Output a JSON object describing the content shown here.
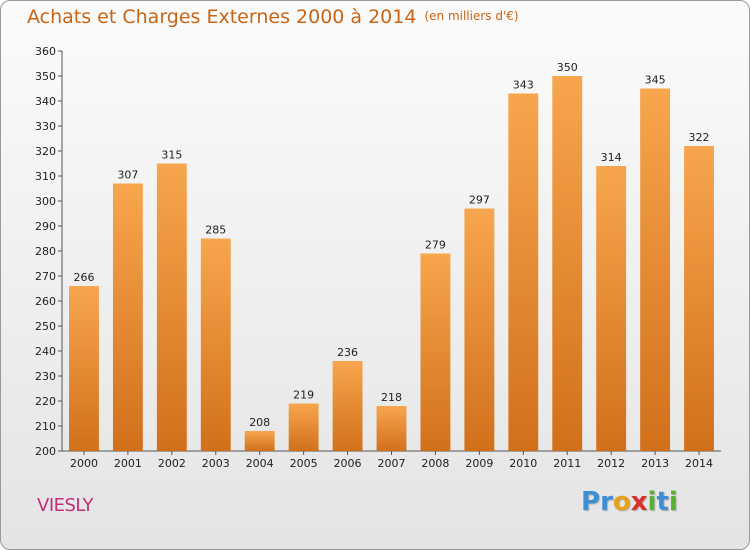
{
  "chart_data": {
    "type": "bar",
    "title": "Achats et Charges Externes 2000 à 2014",
    "subtitle": "(en milliers d'€)",
    "categories": [
      "2000",
      "2001",
      "2002",
      "2003",
      "2004",
      "2005",
      "2006",
      "2007",
      "2008",
      "2009",
      "2010",
      "2011",
      "2012",
      "2013",
      "2014"
    ],
    "values": [
      266,
      307,
      315,
      285,
      208,
      219,
      236,
      218,
      279,
      297,
      343,
      350,
      314,
      345,
      322
    ],
    "ylim": [
      200,
      360
    ],
    "ytick_step": 10,
    "grid": false,
    "bar_color_top": "#f7a64e",
    "bar_color_bottom": "#d2701a"
  },
  "commune": "VIESLY",
  "logo": {
    "letters": [
      "P",
      "r",
      "o",
      "x",
      "i",
      "t",
      "i"
    ],
    "colors": [
      "#3d8fd6",
      "#3d8fd6",
      "#e7a11a",
      "#d8302a",
      "#58b030",
      "#3d8fd6",
      "#58b030"
    ]
  }
}
